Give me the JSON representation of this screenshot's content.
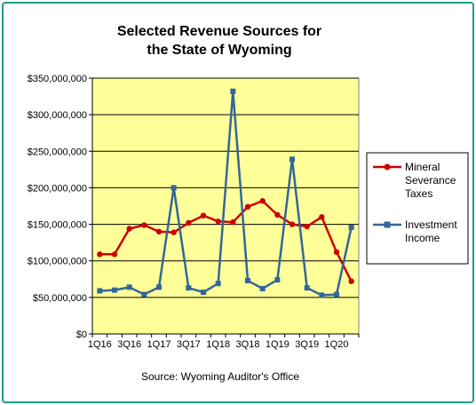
{
  "chart_data": {
    "type": "line",
    "title_line1": "Selected Revenue Sources for",
    "title_line2": "the State of Wyoming",
    "source": "Source: Wyoming Auditor's Office",
    "xlabel": "",
    "ylabel": "",
    "ylim": [
      0,
      350000000
    ],
    "yticks": [
      "$0",
      "$50,000,000",
      "$100,000,000",
      "$150,000,000",
      "$200,000,000",
      "$250,000,000",
      "$300,000,000",
      "$350,000,000"
    ],
    "x": [
      "1Q16",
      "2Q16",
      "3Q16",
      "4Q16",
      "1Q17",
      "2Q17",
      "3Q17",
      "4Q17",
      "1Q18",
      "2Q18",
      "3Q18",
      "4Q18",
      "1Q19",
      "2Q19",
      "3Q19",
      "4Q19",
      "1Q20",
      "2Q20"
    ],
    "x_tick_labels": [
      "1Q16",
      "3Q16",
      "1Q17",
      "3Q17",
      "1Q18",
      "3Q18",
      "1Q19",
      "3Q19",
      "1Q20"
    ],
    "grid": true,
    "plot_background": "#ffff99",
    "legend_position": "right",
    "series": [
      {
        "name_line1": "Mineral",
        "name_line2": "Severance",
        "name_line3": "Taxes",
        "color": "#cc0000",
        "marker": "circle",
        "values": [
          109000000,
          109000000,
          144000000,
          149000000,
          140000000,
          139000000,
          152000000,
          162000000,
          154000000,
          153000000,
          174000000,
          182000000,
          163000000,
          150000000,
          147000000,
          160000000,
          112000000,
          72000000
        ]
      },
      {
        "name_line1": "Investment",
        "name_line2": "Income",
        "name_line3": "",
        "color": "#336699",
        "marker": "square",
        "values": [
          59000000,
          60000000,
          64000000,
          54000000,
          64000000,
          200000000,
          63000000,
          57000000,
          69000000,
          332000000,
          73000000,
          62000000,
          74000000,
          239000000,
          63000000,
          53000000,
          54000000,
          146000000
        ]
      }
    ]
  }
}
